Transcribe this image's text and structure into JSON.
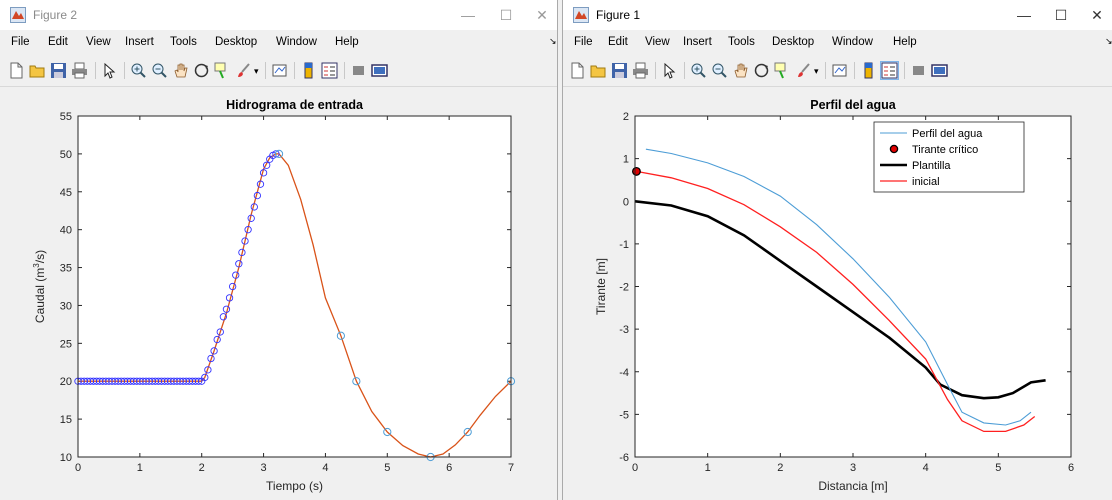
{
  "windows": [
    {
      "id": "figure2",
      "title": "Figure 2",
      "menu": [
        "File",
        "Edit",
        "View",
        "Insert",
        "Tools",
        "Desktop",
        "Window",
        "Help"
      ],
      "chart_data": {
        "type": "line",
        "title": "Hidrograma de entrada",
        "xlabel": "Tiempo (s)",
        "ylabel_main": "Caudal (m",
        "ylabel_sup": "3",
        "ylabel_end": "/s)",
        "xlim": [
          0,
          7
        ],
        "ylim": [
          10,
          55
        ],
        "xticks": [
          0,
          1,
          2,
          3,
          4,
          5,
          6,
          7
        ],
        "yticks": [
          10,
          15,
          20,
          25,
          30,
          35,
          40,
          45,
          50,
          55
        ],
        "colors": {
          "line": "#d95319",
          "markers_dense": "#3333ff",
          "markers_sparse": "#4d9dd6"
        },
        "series": [
          {
            "kind": "line",
            "x": [
              0,
              0.5,
              1,
              1.5,
              2,
              2.05,
              2.2,
              2.4,
              2.6,
              2.8,
              3.0,
              3.1,
              3.2,
              3.25,
              3.4,
              3.6,
              3.8,
              4.0,
              4.25,
              4.5,
              4.75,
              5.0,
              5.25,
              5.5,
              5.7,
              5.9,
              6.1,
              6.3,
              6.5,
              6.75,
              7.0
            ],
            "y": [
              20,
              20,
              20,
              20,
              20,
              20.5,
              24,
              29,
              35,
              42,
              48,
              49.5,
              50,
              50,
              48.5,
              44,
              38,
              31,
              26,
              20,
              16,
              13.3,
              11.5,
              10.4,
              10,
              10.4,
              11.6,
              13.3,
              15.5,
              18,
              20
            ]
          },
          {
            "kind": "markers",
            "x": [
              0,
              0.05,
              0.1,
              0.15,
              0.2,
              0.25,
              0.3,
              0.35,
              0.4,
              0.45,
              0.5,
              0.55,
              0.6,
              0.65,
              0.7,
              0.75,
              0.8,
              0.85,
              0.9,
              0.95,
              1.0,
              1.05,
              1.1,
              1.15,
              1.2,
              1.25,
              1.3,
              1.35,
              1.4,
              1.45,
              1.5,
              1.55,
              1.6,
              1.65,
              1.7,
              1.75,
              1.8,
              1.85,
              1.9,
              1.95,
              2.0,
              2.05,
              2.1,
              2.15,
              2.2,
              2.25,
              2.3,
              2.35,
              2.4,
              2.45,
              2.5,
              2.55,
              2.6,
              2.65,
              2.7,
              2.75,
              2.8,
              2.85,
              2.9,
              2.95,
              3.0,
              3.05,
              3.1,
              3.15,
              3.2
            ],
            "y": [
              20,
              20,
              20,
              20,
              20,
              20,
              20,
              20,
              20,
              20,
              20,
              20,
              20,
              20,
              20,
              20,
              20,
              20,
              20,
              20,
              20,
              20,
              20,
              20,
              20,
              20,
              20,
              20,
              20,
              20,
              20,
              20,
              20,
              20,
              20,
              20,
              20,
              20,
              20,
              20,
              20,
              20.5,
              21.5,
              23,
              24,
              25.5,
              26.5,
              28.5,
              29.5,
              31,
              32.5,
              34,
              35.5,
              37,
              38.5,
              40,
              41.5,
              43,
              44.5,
              46,
              47.5,
              48.5,
              49.3,
              49.8,
              50
            ]
          },
          {
            "kind": "markers",
            "x": [
              3.25,
              4.25,
              4.5,
              5.0,
              5.7,
              6.3,
              7.0
            ],
            "y": [
              50,
              26,
              20,
              13.3,
              10,
              13.3,
              20
            ]
          }
        ]
      }
    },
    {
      "id": "figure1",
      "title": "Figure 1",
      "menu": [
        "File",
        "Edit",
        "View",
        "Insert",
        "Tools",
        "Desktop",
        "Window",
        "Help"
      ],
      "chart_data": {
        "type": "line",
        "title": "Perfil del agua",
        "xlabel": "Distancia [m]",
        "ylabel": "Tirante [m]",
        "xlim": [
          0,
          6
        ],
        "ylim": [
          -6,
          2
        ],
        "xticks": [
          0,
          1,
          2,
          3,
          4,
          5,
          6
        ],
        "yticks": [
          -6,
          -5,
          -4,
          -3,
          -2,
          -1,
          0,
          1,
          2
        ],
        "legend_position": "top-right",
        "series": [
          {
            "name": "Perfil del agua",
            "color": "#4d9dd6",
            "x": [
              0.15,
              0.5,
              1,
              1.5,
              2,
              2.5,
              3,
              3.5,
              4,
              4.3,
              4.5,
              4.8,
              5.1,
              5.3,
              5.45
            ],
            "y": [
              1.22,
              1.12,
              0.9,
              0.58,
              0.12,
              -0.55,
              -1.35,
              -2.25,
              -3.3,
              -4.3,
              -4.95,
              -5.2,
              -5.25,
              -5.15,
              -4.95
            ]
          },
          {
            "name": "Tirante crítico",
            "color": "#000000",
            "marker_fill": "#e00000",
            "x": [
              0.02
            ],
            "y": [
              0.7
            ]
          },
          {
            "name": "Plantilla",
            "color": "#000000",
            "x": [
              0,
              0.5,
              1,
              1.5,
              2,
              2.5,
              3,
              3.5,
              4,
              4.2,
              4.5,
              4.8,
              5.0,
              5.2,
              5.45,
              5.65
            ],
            "y": [
              0,
              -0.1,
              -0.35,
              -0.8,
              -1.4,
              -2.0,
              -2.6,
              -3.2,
              -3.9,
              -4.3,
              -4.55,
              -4.62,
              -4.6,
              -4.5,
              -4.25,
              -4.2
            ]
          },
          {
            "name": "inicial",
            "color": "#ff2020",
            "x": [
              0.02,
              0.5,
              1,
              1.5,
              2,
              2.5,
              3,
              3.5,
              4,
              4.3,
              4.5,
              4.8,
              5.1,
              5.35,
              5.5
            ],
            "y": [
              0.7,
              0.55,
              0.3,
              -0.08,
              -0.6,
              -1.2,
              -1.95,
              -2.8,
              -3.7,
              -4.65,
              -5.15,
              -5.4,
              -5.4,
              -5.25,
              -5.05
            ]
          }
        ]
      }
    }
  ]
}
